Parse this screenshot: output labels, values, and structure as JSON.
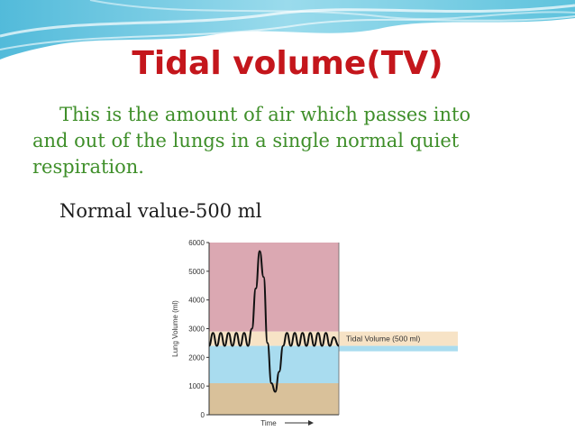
{
  "slide": {
    "title": "Tidal volume(TV)",
    "definition_line1": "This is the amount of air which passes into",
    "definition_line2": "and out of the lungs in a single normal quiet",
    "definition_line3": "respiration.",
    "normal_value": "Normal value-500 ml"
  },
  "colors": {
    "title": "#c4161c",
    "definition_text": "#3f8f2a",
    "header_wave": "#5ec3dc",
    "zone_top": "#dba8b2",
    "zone_tidal": "#f7e3c6",
    "zone_mid": "#a9dcef",
    "zone_bottom": "#d9c19a",
    "tidal_band": "#f7e3c6"
  },
  "chart_data": {
    "type": "line",
    "ylabel": "Lung Volume (ml)",
    "xlabel": "Time",
    "ylim": [
      0,
      6000
    ],
    "yticks": [
      {
        "value": 0,
        "label": "0"
      },
      {
        "value": 1000,
        "label": "1000"
      },
      {
        "value": 2000,
        "label": "2000"
      },
      {
        "value": 3000,
        "label": "3000"
      },
      {
        "value": 4000,
        "label": "4000"
      },
      {
        "value": 5000,
        "label": "5000"
      },
      {
        "value": 6000,
        "label": "6000"
      }
    ],
    "zones": [
      {
        "name": "top",
        "from": 2900,
        "to": 6000,
        "color": "#dba8b2"
      },
      {
        "name": "tidal",
        "from": 2400,
        "to": 2900,
        "color": "#f7e3c6"
      },
      {
        "name": "mid",
        "from": 1100,
        "to": 2400,
        "color": "#a9dcef"
      },
      {
        "name": "bottom",
        "from": 0,
        "to": 1100,
        "color": "#d9c19a"
      }
    ],
    "annotation": "Tidal Volume (500 ml)",
    "series": [
      {
        "x": [
          0,
          0.03,
          0.06,
          0.09,
          0.12,
          0.15,
          0.18,
          0.21,
          0.24,
          0.27,
          0.3,
          0.33,
          0.36,
          0.39,
          0.42,
          0.45,
          0.48,
          0.51,
          0.54,
          0.57,
          0.6,
          0.63,
          0.66,
          0.69,
          0.72,
          0.75,
          0.78,
          0.81,
          0.84,
          0.87,
          0.9,
          0.93,
          0.96,
          1.0
        ],
        "y": [
          2400,
          2850,
          2400,
          2850,
          2400,
          2850,
          2400,
          2850,
          2400,
          2850,
          2400,
          3000,
          4400,
          5700,
          4800,
          2500,
          1100,
          800,
          1500,
          2400,
          2850,
          2400,
          2850,
          2400,
          2850,
          2400,
          2850,
          2400,
          2850,
          2400,
          2850,
          2400,
          2700,
          2400
        ]
      }
    ]
  }
}
